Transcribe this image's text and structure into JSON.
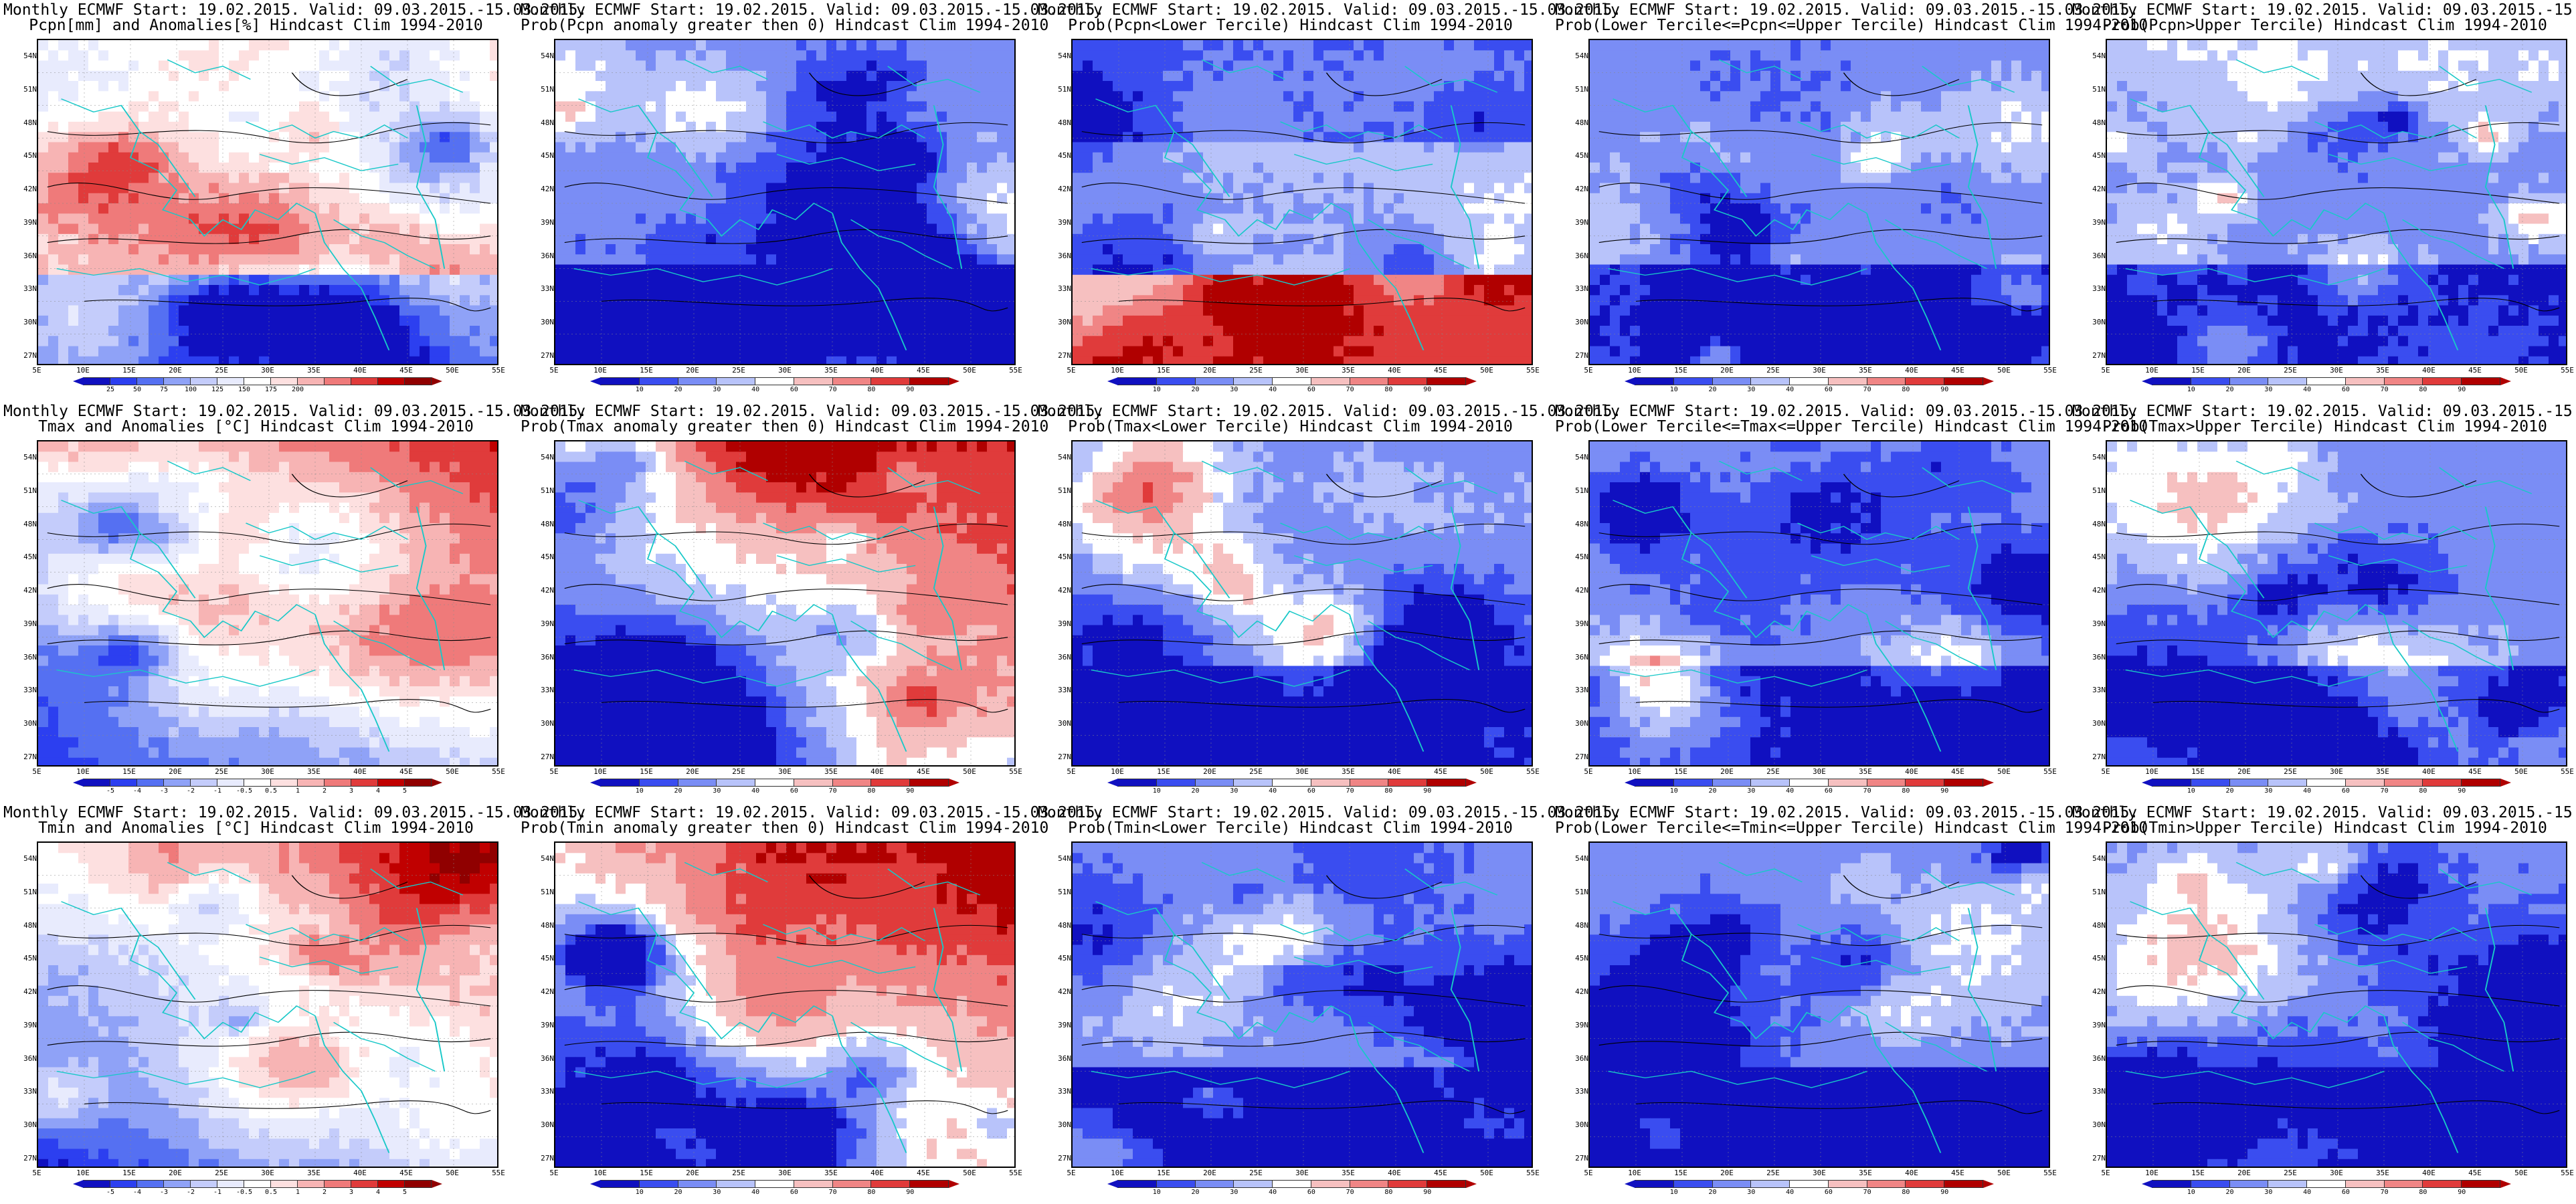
{
  "header_line": "Monthly ECMWF Start: 19.02.2015. Valid: 09.03.2015.-15.03.2015.",
  "x_ticks": [
    "5E",
    "10E",
    "15E",
    "20E",
    "25E",
    "30E",
    "35E",
    "40E",
    "45E",
    "50E",
    "55E"
  ],
  "y_ticks": [
    "54N",
    "51N",
    "48N",
    "45N",
    "42N",
    "39N",
    "36N",
    "33N",
    "30N",
    "27N"
  ],
  "rows": [
    {
      "panels": [
        {
          "title": "Pcpn[mm] and Anomalies[%] Hindcast Clim 1994-2010",
          "scheme": "anom_pcpn",
          "seed": 11,
          "colorbar": [
            "25",
            "50",
            "75",
            "100",
            "125",
            "150",
            "175",
            "200"
          ]
        },
        {
          "title": "Prob(Pcpn anomaly greater then 0) Hindcast Clim 1994-2010",
          "scheme": "prob_low",
          "seed": 12,
          "colorbar": [
            "10",
            "20",
            "30",
            "40",
            "60",
            "70",
            "80",
            "90"
          ]
        },
        {
          "title": "Prob(Pcpn<Lower Tercile) Hindcast Clim 1994-2010",
          "scheme": "prob_mix",
          "seed": 13,
          "colorbar": [
            "10",
            "20",
            "30",
            "40",
            "60",
            "70",
            "80",
            "90"
          ]
        },
        {
          "title": "Prob(Lower Tercile<=Pcpn<=Upper Tercile) Hindcast Clim 1994-2010",
          "scheme": "prob_low",
          "seed": 14,
          "colorbar": [
            "10",
            "20",
            "30",
            "40",
            "60",
            "70",
            "80",
            "90"
          ]
        },
        {
          "title": "Prob(Pcpn>Upper Tercile) Hindcast Clim 1994-2010",
          "scheme": "prob_low",
          "seed": 15,
          "colorbar": [
            "10",
            "20",
            "30",
            "40",
            "60",
            "70",
            "80",
            "90"
          ]
        }
      ]
    },
    {
      "panels": [
        {
          "title": "Tmax and Anomalies [°C] Hindcast Clim 1994-2010",
          "scheme": "anom_temp",
          "seed": 21,
          "colorbar": [
            "-5",
            "-4",
            "-3",
            "-2",
            "-1",
            "-0.5",
            "0.5",
            "1",
            "2",
            "3",
            "4",
            "5"
          ]
        },
        {
          "title": "Prob(Tmax anomaly greater then 0) Hindcast Clim 1994-2010",
          "scheme": "prob_high",
          "seed": 22,
          "colorbar": [
            "10",
            "20",
            "30",
            "40",
            "60",
            "70",
            "80",
            "90"
          ]
        },
        {
          "title": "Prob(Tmax<Lower Tercile) Hindcast Clim 1994-2010",
          "scheme": "prob_low",
          "seed": 23,
          "colorbar": [
            "10",
            "20",
            "30",
            "40",
            "60",
            "70",
            "80",
            "90"
          ]
        },
        {
          "title": "Prob(Lower Tercile<=Tmax<=Upper Tercile) Hindcast Clim 1994-2010",
          "scheme": "prob_low",
          "seed": 24,
          "colorbar": [
            "10",
            "20",
            "30",
            "40",
            "60",
            "70",
            "80",
            "90"
          ]
        },
        {
          "title": "Prob(Tmax>Upper Tercile) Hindcast Clim 1994-2010",
          "scheme": "prob_low",
          "seed": 25,
          "colorbar": [
            "10",
            "20",
            "30",
            "40",
            "60",
            "70",
            "80",
            "90"
          ]
        }
      ]
    },
    {
      "panels": [
        {
          "title": "Tmin and Anomalies [°C] Hindcast Clim 1994-2010",
          "scheme": "anom_temp",
          "seed": 31,
          "colorbar": [
            "-5",
            "-4",
            "-3",
            "-2",
            "-1",
            "-0.5",
            "0.5",
            "1",
            "2",
            "3",
            "4",
            "5"
          ]
        },
        {
          "title": "Prob(Tmin anomaly greater then 0) Hindcast Clim 1994-2010",
          "scheme": "prob_high",
          "seed": 32,
          "colorbar": [
            "10",
            "20",
            "30",
            "40",
            "60",
            "70",
            "80",
            "90"
          ]
        },
        {
          "title": "Prob(Tmin<Lower Tercile) Hindcast Clim 1994-2010",
          "scheme": "prob_low",
          "seed": 33,
          "colorbar": [
            "10",
            "20",
            "30",
            "40",
            "60",
            "70",
            "80",
            "90"
          ]
        },
        {
          "title": "Prob(Lower Tercile<=Tmin<=Upper Tercile) Hindcast Clim 1994-2010",
          "scheme": "prob_low",
          "seed": 34,
          "colorbar": [
            "10",
            "20",
            "30",
            "40",
            "60",
            "70",
            "80",
            "90"
          ]
        },
        {
          "title": "Prob(Tmin>Upper Tercile) Hindcast Clim 1994-2010",
          "scheme": "prob_low",
          "seed": 35,
          "colorbar": [
            "10",
            "20",
            "30",
            "40",
            "60",
            "70",
            "80",
            "90"
          ]
        }
      ]
    }
  ],
  "palette_probability": [
    "#1010c0",
    "#3a4df0",
    "#7a8df5",
    "#b8c3fa",
    "#ffffff",
    "#f6c0c0",
    "#f08585",
    "#e03b3b",
    "#b00000"
  ],
  "palette_anomaly": [
    "#1010c0",
    "#2c3ff0",
    "#5570f2",
    "#8fa2f7",
    "#c4ccfb",
    "#e8ebfd",
    "#ffffff",
    "#fde0e0",
    "#f7b4b4",
    "#ef7a7a",
    "#e03b3b",
    "#c00000",
    "#900000"
  ],
  "coast_color": "#19c8c8",
  "contour_color": "#000000"
}
